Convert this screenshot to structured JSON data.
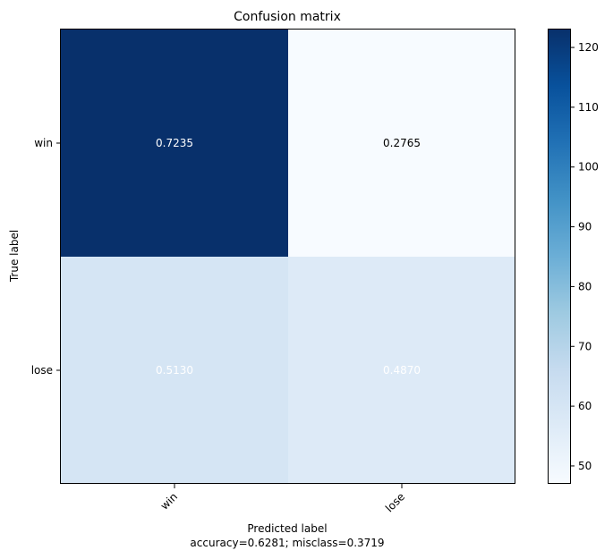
{
  "chart_data": {
    "type": "heatmap",
    "title": "Confusion matrix",
    "ylabel": "True label",
    "xlabel": "Predicted label",
    "xlabel_note": "accuracy=0.6281; misclass=0.3719",
    "x_categories": [
      "win",
      "lose"
    ],
    "y_categories": [
      "win",
      "lose"
    ],
    "cell_values": [
      [
        "0.7235",
        "0.2765"
      ],
      [
        "0.5130",
        "0.4870"
      ]
    ],
    "cell_counts_estimated": [
      [
        123,
        47
      ],
      [
        60,
        57
      ]
    ],
    "colormap": "Blues",
    "colorbar": {
      "range": [
        47,
        123
      ],
      "ticks": [
        "50",
        "60",
        "70",
        "80",
        "90",
        "100",
        "110",
        "120"
      ]
    },
    "colors": {
      "dark": "#08306b",
      "light": "#f7fbff"
    }
  }
}
